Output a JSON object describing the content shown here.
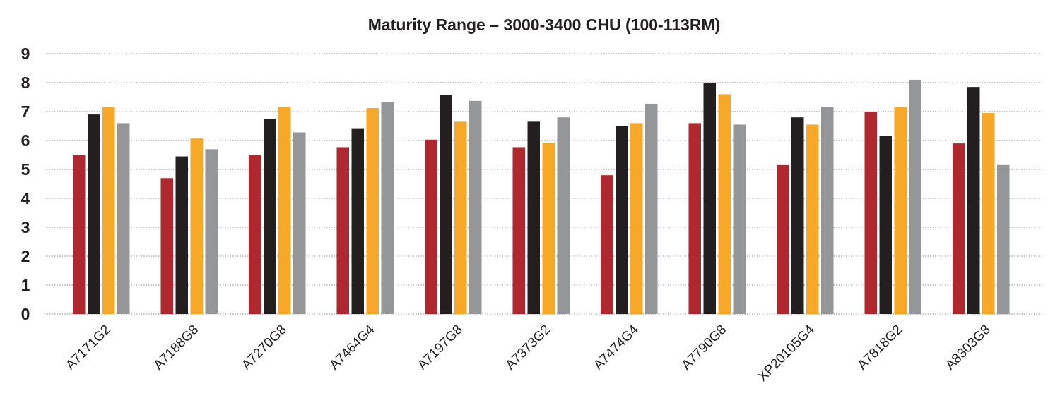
{
  "chart_data": {
    "type": "bar",
    "title": "Maturity Range – 3000-3400 CHU (100-113RM)",
    "xlabel": "",
    "ylabel": "",
    "ylim": [
      0,
      9
    ],
    "yticks": [
      "0",
      "1",
      "2",
      "3",
      "4",
      "5",
      "6",
      "7",
      "8",
      "9"
    ],
    "grid": true,
    "legend": "none",
    "categories": [
      "A7171G2",
      "A7188G8",
      "A7270G8",
      "A7464G4",
      "A7197G8",
      "A7373G2",
      "A7474G4",
      "A7790G8",
      "XP20105G4",
      "A7818G2",
      "A8303G8"
    ],
    "series": [
      {
        "color": "#b0282f",
        "values": [
          5.5,
          4.7,
          5.5,
          5.77,
          6.03,
          5.77,
          4.8,
          6.6,
          5.15,
          7.0,
          5.9
        ]
      },
      {
        "color": "#231f20",
        "values": [
          6.9,
          5.45,
          6.75,
          6.4,
          7.57,
          6.65,
          6.5,
          8.0,
          6.8,
          6.17,
          7.85
        ]
      },
      {
        "color": "#f7a829",
        "values": [
          7.15,
          6.07,
          7.15,
          7.12,
          6.65,
          5.92,
          6.6,
          7.6,
          6.55,
          7.15,
          6.95
        ]
      },
      {
        "color": "#959698",
        "values": [
          6.6,
          5.7,
          6.28,
          7.33,
          7.37,
          6.8,
          7.27,
          6.55,
          7.17,
          8.1,
          5.15
        ]
      }
    ]
  }
}
